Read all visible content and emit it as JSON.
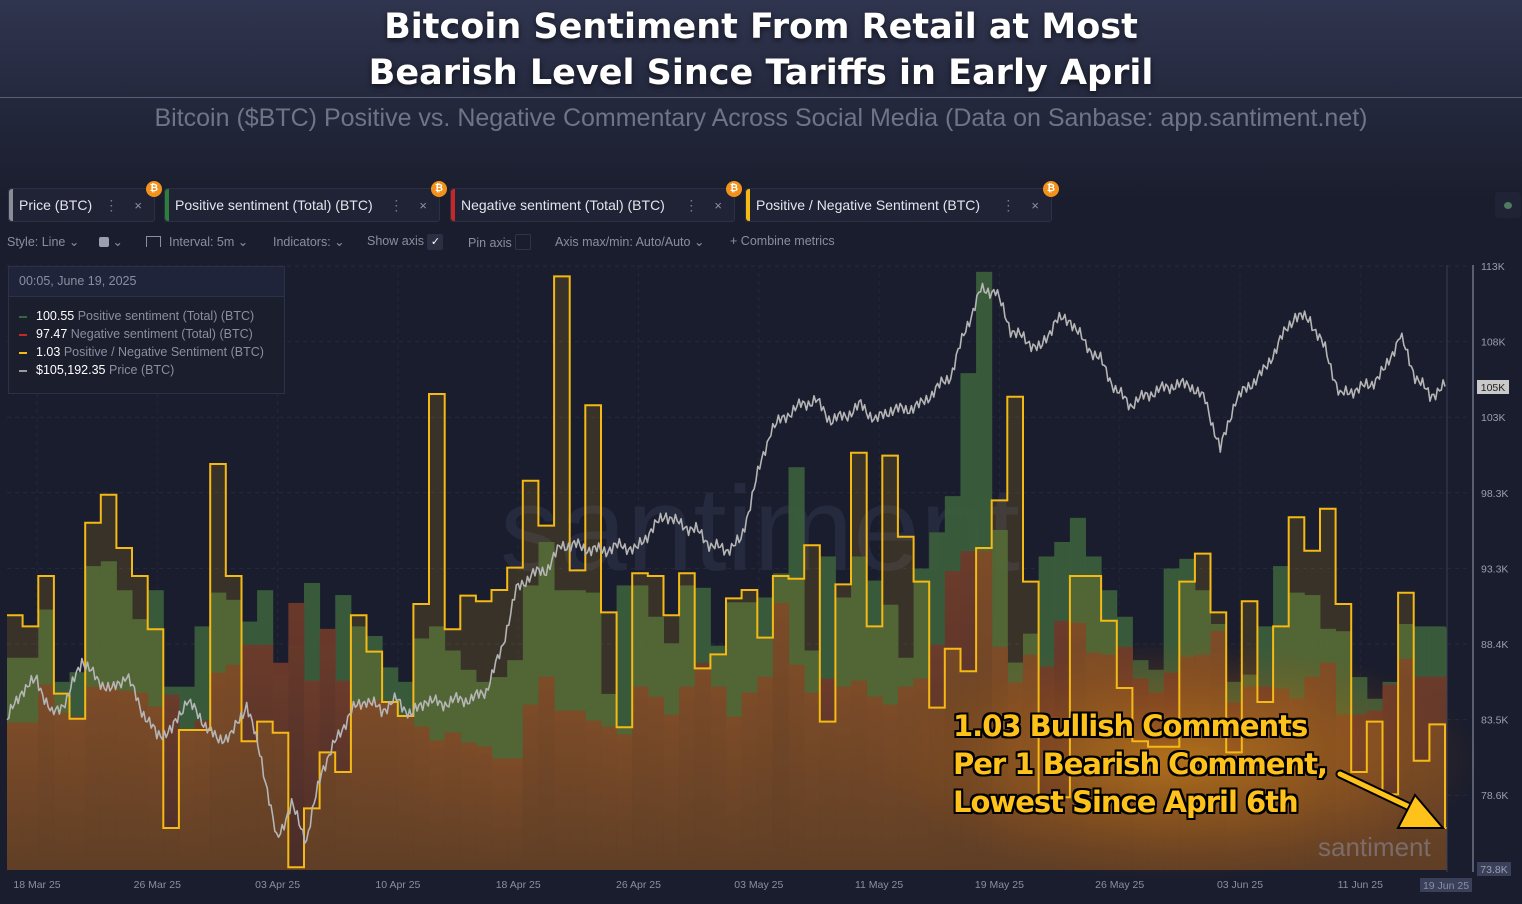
{
  "header": {
    "title_line1": "Bitcoin Sentiment From Retail at Most",
    "title_line2": "Bearish Level Since Tariffs in Early April",
    "subtitle": "Bitcoin ($BTC) Positive vs. Negative Commentary Across Social Media (Data on Sanbase: app.santiment.net)"
  },
  "tabs": [
    {
      "label": "Price (BTC)",
      "color": "#8a8d96"
    },
    {
      "label": "Positive sentiment (Total) (BTC)",
      "color": "#2f7d3b"
    },
    {
      "label": "Negative sentiment (Total) (BTC)",
      "color": "#c62828"
    },
    {
      "label": "Positive / Negative Sentiment (BTC)",
      "color": "#f5b914"
    }
  ],
  "tab_icons": {
    "badge": "bitcoin-icon",
    "menu": "more-vertical-icon",
    "close": "close-icon",
    "badge_glyph": "₿",
    "menu_glyph": "⋮",
    "close_glyph": "×"
  },
  "toolbar": {
    "style": "Style: Line",
    "interval": "Interval: 5m",
    "indicators": "Indicators:",
    "show_axis": "Show axis",
    "show_axis_checked": true,
    "pin_axis": "Pin axis",
    "pin_axis_checked": false,
    "axis_maxmin": "Axis max/min: Auto/Auto",
    "combine": "Combine metrics",
    "chevron": "⌄",
    "plus": "+",
    "check": "✓"
  },
  "legend": {
    "timestamp": "00:05, June 19, 2025",
    "rows": [
      {
        "value": "100.55",
        "label": "Positive sentiment (Total) (BTC)",
        "color": "#2f6b3a"
      },
      {
        "value": "97.47",
        "label": "Negative sentiment (Total) (BTC)",
        "color": "#c62828"
      },
      {
        "value": "1.03",
        "label": "Positive / Negative Sentiment (BTC)",
        "color": "#f5b914"
      },
      {
        "value": "$105,192.35",
        "label": "Price (BTC)",
        "color": "#9a9a9a"
      }
    ]
  },
  "annotation": {
    "line1": "1.03 Bullish Comments",
    "line2": "Per 1 Bearish Comment,",
    "line3": "Lowest Since April 6th",
    "color": "#ffc21a"
  },
  "watermark": "santiment",
  "chart_data": {
    "type": "line",
    "title": "",
    "x_ticks": [
      "18 Mar 25",
      "26 Mar 25",
      "03 Apr 25",
      "10 Apr 25",
      "18 Apr 25",
      "26 Apr 25",
      "03 May 25",
      "11 May 25",
      "19 May 25",
      "26 May 25",
      "03 Jun 25",
      "11 Jun 25",
      "19 Jun 25"
    ],
    "y_ticks_price": [
      "113K",
      "108K",
      "103K",
      "98.3K",
      "93.3K",
      "88.4K",
      "83.5K",
      "78.6K",
      "73.8K"
    ],
    "price_axis_current": "105K",
    "price_axis_min": "73.8K",
    "price_ylim": [
      73800,
      113000
    ],
    "grid": true,
    "series": [
      {
        "name": "Price (BTC)",
        "style": "line",
        "color": "#b5b5b5",
        "values": [
          83600,
          85500,
          86200,
          83900,
          84900,
          87500,
          86200,
          85500,
          86500,
          84200,
          82600,
          82900,
          84900,
          83600,
          82300,
          82600,
          84600,
          81000,
          75800,
          78100,
          75800,
          80300,
          82300,
          84200,
          84900,
          84200,
          84900,
          83900,
          84900,
          84600,
          84900,
          84900,
          85500,
          88100,
          92000,
          93000,
          93300,
          94900,
          94900,
          94600,
          94600,
          94900,
          94600,
          95900,
          96900,
          96200,
          95900,
          94900,
          94600,
          95200,
          99100,
          102400,
          103300,
          104000,
          104300,
          103000,
          103300,
          104000,
          103000,
          103700,
          103700,
          104000,
          105000,
          105900,
          108900,
          111400,
          111400,
          108900,
          108200,
          107600,
          109500,
          109500,
          107900,
          106900,
          105000,
          104000,
          104600,
          105000,
          105300,
          105300,
          104300,
          101100,
          104300,
          105300,
          106300,
          108200,
          109800,
          109500,
          107600,
          104600,
          105000,
          105300,
          106300,
          108500,
          105900,
          104600,
          105192.35
        ]
      },
      {
        "name": "Positive sentiment (Total) (BTC)",
        "style": "step-area",
        "color": "#3a5e3c",
        "values": [
          88,
          88,
          108,
          78,
          82,
          126,
          128,
          116,
          104,
          116,
          76,
          76,
          101,
          115,
          112,
          103,
          116,
          81,
          93,
          119,
          93,
          114,
          101,
          97,
          84,
          78,
          96,
          101,
          91,
          83,
          78,
          80,
          87,
          118,
          136,
          116,
          116,
          115,
          73,
          118,
          118,
          105,
          94,
          118,
          117,
          93,
          111,
          111,
          113,
          123,
          167,
          91,
          130,
          113,
          130,
          120,
          110,
          88,
          125,
          140,
          155,
          206,
          248,
          141,
          86,
          98,
          130,
          136,
          146,
          130,
          116,
          105,
          87,
          83,
          125,
          129,
          116,
          102,
          78,
          81,
          101,
          126,
          115,
          114,
          100,
          99,
          80,
          71,
          78,
          102,
          101,
          101,
          100.55
        ]
      },
      {
        "name": "Negative sentiment (Total) (BTC)",
        "style": "step-area",
        "color": "#6a3628",
        "values": [
          74,
          74,
          93,
          79,
          77,
          92,
          93,
          90,
          89,
          82,
          88,
          70,
          75,
          99,
          103,
          113,
          113,
          104,
          134,
          95,
          121,
          95,
          84,
          85,
          84,
          77,
          72,
          65,
          69,
          64,
          62,
          56,
          56,
          83,
          97,
          80,
          80,
          75,
          72,
          68,
          92,
          87,
          78,
          92,
          104,
          92,
          77,
          89,
          97,
          134,
          103,
          89,
          96,
          92,
          95,
          87,
          83,
          92,
          96,
          113,
          150,
          160,
          160,
          112,
          94,
          108,
          102,
          125,
          124,
          109,
          108,
          112,
          96,
          89,
          99,
          107,
          108,
          120,
          84,
          92,
          92,
          91,
          86,
          97,
          104,
          78,
          78,
          80,
          93,
          106,
          97,
          97,
          97.47
        ]
      },
      {
        "name": "Positive / Negative Sentiment (BTC)",
        "style": "step-line",
        "color": "#f5b914",
        "values": [
          1.79,
          1.75,
          1.93,
          1.51,
          1.42,
          2.12,
          2.22,
          2.03,
          1.93,
          1.74,
          1.03,
          1.38,
          1.38,
          2.33,
          1.93,
          1.34,
          1.41,
          1.37,
          0.89,
          1.1,
          1.3,
          1.23,
          1.79,
          1.66,
          1.48,
          1.43,
          1.83,
          2.58,
          1.74,
          1.86,
          1.84,
          1.88,
          1.96,
          2.27,
          2.11,
          3.0,
          1.95,
          2.54,
          1.8,
          1.39,
          1.94,
          1.93,
          1.79,
          1.94,
          1.6,
          1.65,
          1.85,
          1.88,
          1.71,
          1.93,
          1.92,
          2.04,
          1.41,
          1.9,
          2.37,
          1.75,
          2.36,
          2.07,
          1.91,
          1.46,
          1.67,
          1.59,
          2.03,
          2.2,
          2.57,
          1.91,
          1.14,
          1.14,
          1.93,
          1.93,
          1.77,
          1.53,
          1.34,
          1.32,
          1.32,
          1.91,
          2.01,
          1.8,
          1.3,
          1.84,
          1.48,
          1.75,
          2.14,
          2.02,
          2.17,
          1.83,
          1.23,
          1.41,
          1.15,
          1.87,
          1.27,
          1.4,
          1.03
        ]
      }
    ]
  }
}
